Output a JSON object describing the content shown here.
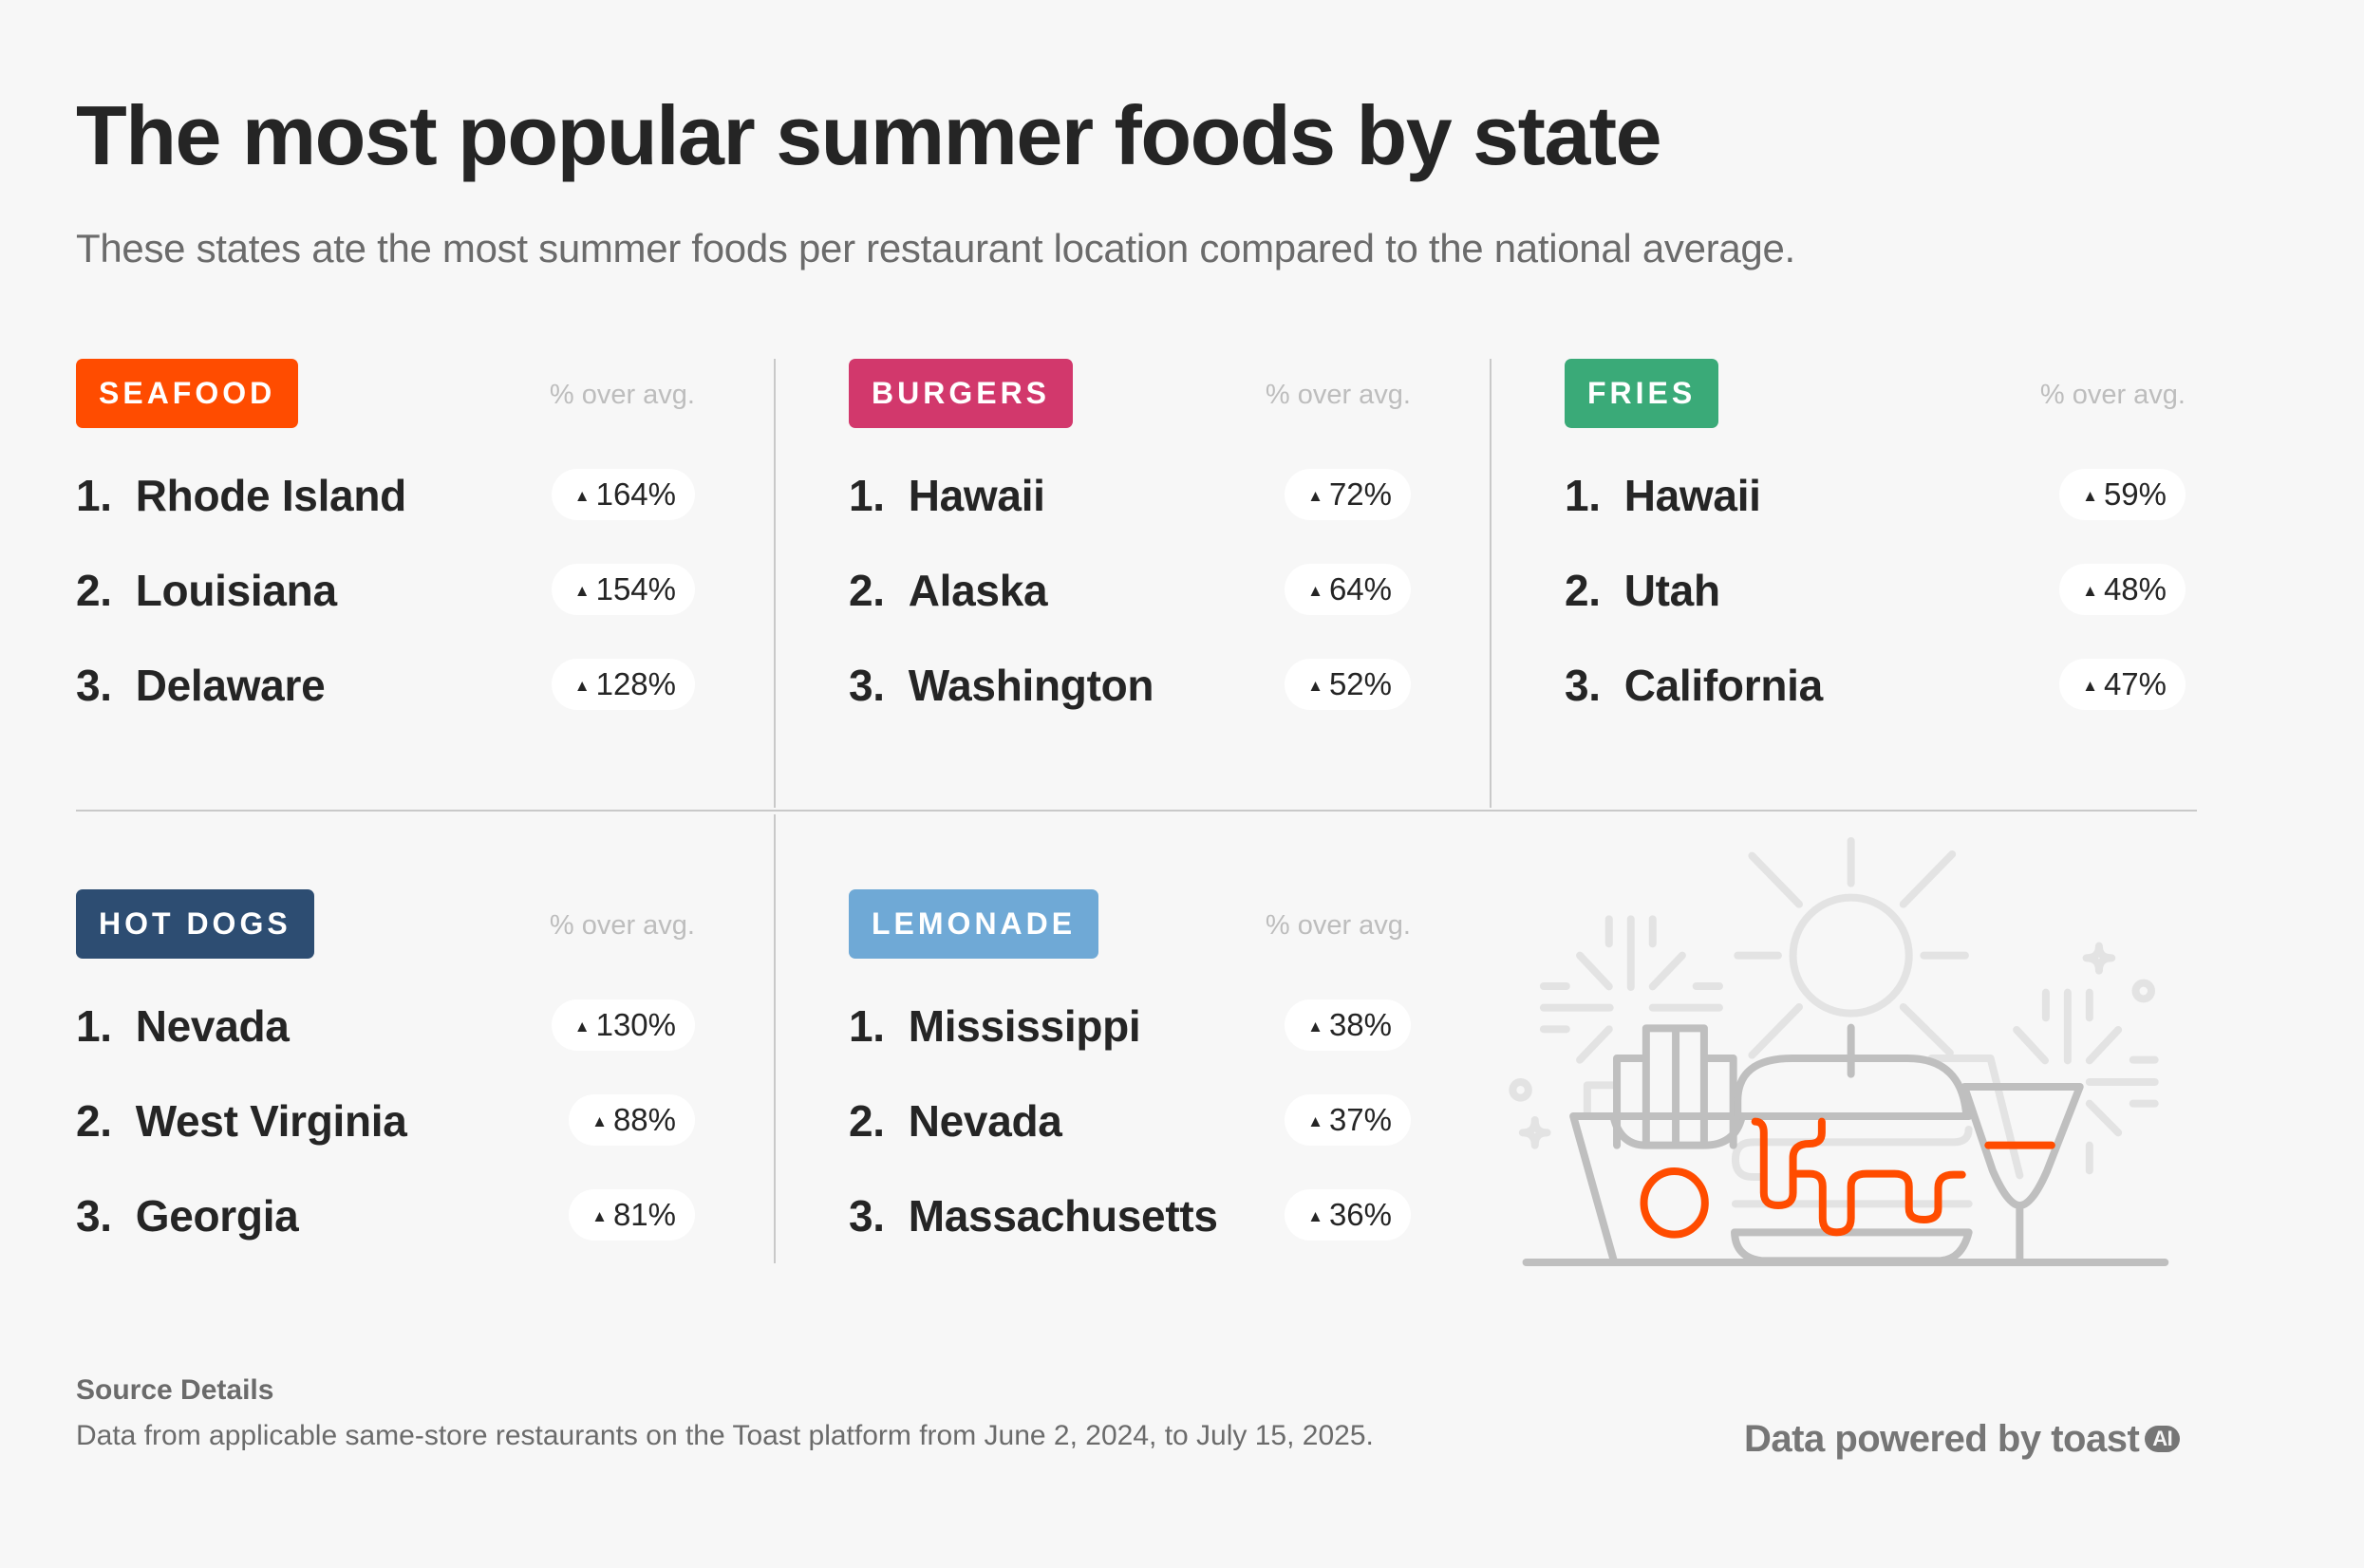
{
  "title": "The most popular summer foods by state",
  "subtitle": "These states ate the most summer foods per restaurant location compared to the national average.",
  "column_header": "% over avg.",
  "colors": {
    "seafood": "#ff4c00",
    "burgers": "#d2386c",
    "fries": "#3aaa78",
    "hot_dogs": "#2d4d72",
    "lemonade": "#6fa9d6"
  },
  "chart_data": {
    "type": "table",
    "title": "The most popular summer foods by state",
    "unit": "% over avg.",
    "categories": [
      {
        "label": "SEAFOOD",
        "rows": [
          {
            "rank": "1.",
            "state": "Rhode Island",
            "value": 164,
            "display": "164%"
          },
          {
            "rank": "2.",
            "state": "Louisiana",
            "value": 154,
            "display": "154%"
          },
          {
            "rank": "3.",
            "state": "Delaware",
            "value": 128,
            "display": "128%"
          }
        ]
      },
      {
        "label": "BURGERS",
        "rows": [
          {
            "rank": "1.",
            "state": "Hawaii",
            "value": 72,
            "display": "72%"
          },
          {
            "rank": "2.",
            "state": "Alaska",
            "value": 64,
            "display": "64%"
          },
          {
            "rank": "3.",
            "state": "Washington",
            "value": 52,
            "display": "52%"
          }
        ]
      },
      {
        "label": "FRIES",
        "rows": [
          {
            "rank": "1.",
            "state": "Hawaii",
            "value": 59,
            "display": "59%"
          },
          {
            "rank": "2.",
            "state": "Utah",
            "value": 48,
            "display": "48%"
          },
          {
            "rank": "3.",
            "state": "California",
            "value": 47,
            "display": "47%"
          }
        ]
      },
      {
        "label": "HOT DOGS",
        "rows": [
          {
            "rank": "1.",
            "state": "Nevada",
            "value": 130,
            "display": "130%"
          },
          {
            "rank": "2.",
            "state": "West Virginia",
            "value": 88,
            "display": "88%"
          },
          {
            "rank": "3.",
            "state": "Georgia",
            "value": 81,
            "display": "81%"
          }
        ]
      },
      {
        "label": "LEMONADE",
        "rows": [
          {
            "rank": "1.",
            "state": "Mississippi",
            "value": 38,
            "display": "38%"
          },
          {
            "rank": "2.",
            "state": "Nevada",
            "value": 37,
            "display": "37%"
          },
          {
            "rank": "3.",
            "state": "Massachusetts",
            "value": 36,
            "display": "36%"
          }
        ]
      }
    ]
  },
  "source": {
    "heading": "Source Details",
    "text": "Data from applicable same-store restaurants on the Toast platform from June 2, 2024, to July 15, 2025."
  },
  "logo": {
    "text": "Data powered by toast",
    "badge": "AI"
  }
}
